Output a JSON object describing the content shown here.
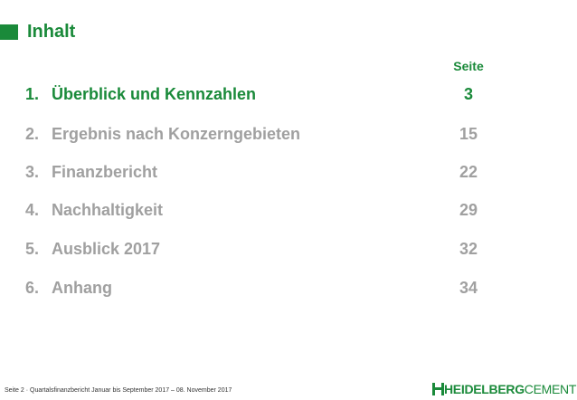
{
  "header": {
    "title": "Inhalt"
  },
  "toc": {
    "page_header": "Seite",
    "items": [
      {
        "num": "1.",
        "label": "Überblick und Kennzahlen",
        "page": "3"
      },
      {
        "num": "2.",
        "label": "Ergebnis nach Konzerngebieten",
        "page": "15"
      },
      {
        "num": "3.",
        "label": "Finanzbericht",
        "page": "22"
      },
      {
        "num": "4.",
        "label": "Nachhaltigkeit",
        "page": "29"
      },
      {
        "num": "5.",
        "label": "Ausblick 2017",
        "page": "32"
      },
      {
        "num": "6.",
        "label": "Anhang",
        "page": "34"
      }
    ]
  },
  "footer": {
    "text": "Seite 2 · Quartalsfinanzbericht Januar bis September 2017 – 08. November 2017"
  },
  "logo": {
    "part1": "HEIDELBERG",
    "part2": "CEMENT"
  },
  "colors": {
    "accent": "#1a8a3a",
    "inactive": "#a0a0a0"
  }
}
